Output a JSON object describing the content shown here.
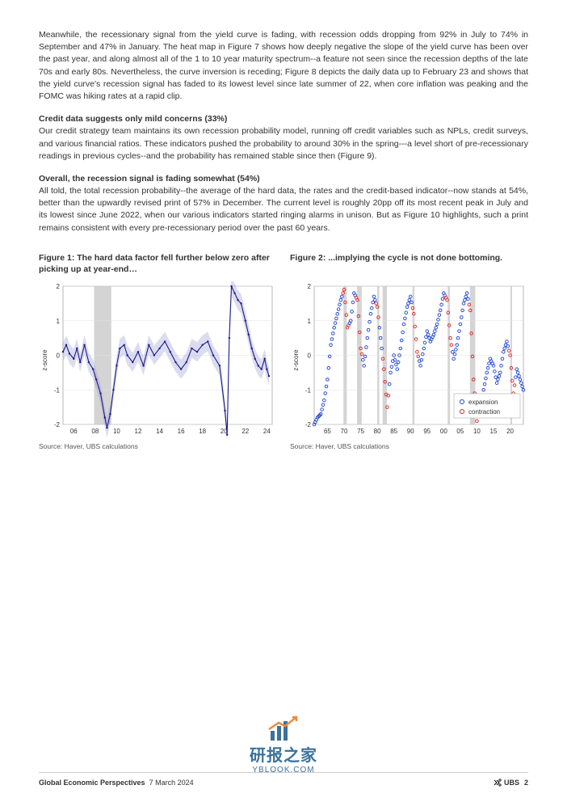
{
  "paragraphs": {
    "intro": "Meanwhile, the recessionary signal from the yield curve is fading, with recession odds dropping from 92% in July to 74% in September and 47% in January. The heat map in Figure 7 shows how deeply negative the slope of the yield curve has been over the past year, and along almost all of the 1 to 10 year maturity spectrum--a feature not seen since the recession depths of the late 70s and early 80s. Nevertheless, the curve inversion is receding; Figure 8 depicts the daily data up to February 23 and shows that the yield curve's recession signal has faded to its lowest level since late summer of 22, when core inflation was peaking and the FOMC was hiking rates at a rapid clip.",
    "credit_heading": "Credit data suggests only mild concerns (33%)",
    "credit_body": "Our credit strategy team maintains its own recession probability model, running off credit variables such as NPLs, credit surveys, and various financial ratios. These indicators pushed the probability to around 30% in the spring---a level short of pre-recessionary readings in previous cycles--and the probability has remained stable since then (Figure 9).",
    "overall_heading": "Overall, the recession signal is fading somewhat (54%)",
    "overall_body": "All told, the total recession probability--the average of the hard data, the rates and the credit-based indicator--now stands at 54%, better than the upwardly revised print of 57% in December. The current level is roughly 20pp off its most recent peak in July and its lowest since June 2022, when our various indicators started ringing alarms in unison. But as Figure 10 highlights, such a print remains consistent with every pre-recessionary period over the past 60 years."
  },
  "figure1": {
    "title": "Figure 1: The hard data factor fell further below zero after picking up at year-end…",
    "source": "Source: Haver, UBS calculations",
    "ylabel": "z-score",
    "ylim": [
      -2,
      2
    ],
    "ytick_step": 1,
    "xticks": [
      "06",
      "08",
      "10",
      "12",
      "14",
      "16",
      "18",
      "20",
      "22",
      "24"
    ],
    "recession_bands": [
      [
        2007.9,
        2009.5
      ]
    ],
    "xmin": 2005,
    "xmax": 2024.5,
    "line_color": "#1a1a8a",
    "band_color": "#9a9ad4",
    "recession_color": "#b8b8b8",
    "grid_color": "#e0e0e0",
    "background_color": "#ffffff",
    "data": [
      [
        2005.0,
        0.1
      ],
      [
        2005.3,
        0.3
      ],
      [
        2005.6,
        0.05
      ],
      [
        2006.0,
        -0.1
      ],
      [
        2006.3,
        0.2
      ],
      [
        2006.6,
        -0.2
      ],
      [
        2007.0,
        0.3
      ],
      [
        2007.4,
        -0.2
      ],
      [
        2007.8,
        -0.4
      ],
      [
        2008.1,
        -0.7
      ],
      [
        2008.5,
        -1.1
      ],
      [
        2008.9,
        -1.8
      ],
      [
        2009.1,
        -2.1
      ],
      [
        2009.4,
        -1.7
      ],
      [
        2009.7,
        -1.0
      ],
      [
        2010.0,
        -0.3
      ],
      [
        2010.3,
        0.2
      ],
      [
        2010.7,
        0.3
      ],
      [
        2011.0,
        0.0
      ],
      [
        2011.5,
        -0.2
      ],
      [
        2012.0,
        0.1
      ],
      [
        2012.5,
        -0.3
      ],
      [
        2013.0,
        0.3
      ],
      [
        2013.5,
        0.0
      ],
      [
        2014.0,
        0.2
      ],
      [
        2014.5,
        0.4
      ],
      [
        2015.0,
        0.1
      ],
      [
        2015.5,
        -0.2
      ],
      [
        2016.0,
        -0.4
      ],
      [
        2016.5,
        -0.2
      ],
      [
        2017.0,
        0.2
      ],
      [
        2017.5,
        0.1
      ],
      [
        2018.0,
        0.3
      ],
      [
        2018.5,
        0.4
      ],
      [
        2019.0,
        0.0
      ],
      [
        2019.6,
        -0.3
      ],
      [
        2020.1,
        -1.6
      ],
      [
        2020.3,
        -2.3
      ],
      [
        2020.5,
        0.5
      ],
      [
        2020.7,
        2.0
      ],
      [
        2021.0,
        1.8
      ],
      [
        2021.3,
        1.6
      ],
      [
        2021.6,
        1.5
      ],
      [
        2022.0,
        1.0
      ],
      [
        2022.3,
        0.6
      ],
      [
        2022.6,
        0.2
      ],
      [
        2022.9,
        -0.1
      ],
      [
        2023.2,
        -0.3
      ],
      [
        2023.5,
        -0.4
      ],
      [
        2023.8,
        -0.1
      ],
      [
        2024.0,
        -0.4
      ],
      [
        2024.2,
        -0.6
      ]
    ]
  },
  "figure2": {
    "title": "Figure 2: ...implying the cycle is not done bottoming.",
    "source": "Source: Haver, UBS calculations",
    "ylabel": "z-score",
    "ylim": [
      -2,
      2
    ],
    "ytick_step": 1,
    "xticks": [
      "65",
      "70",
      "75",
      "80",
      "85",
      "90",
      "95",
      "00",
      "05",
      "10",
      "15",
      "20"
    ],
    "xmin": 1961,
    "xmax": 2024,
    "recession_bands": [
      [
        1969.8,
        1970.8
      ],
      [
        1973.9,
        1975.3
      ],
      [
        1980.0,
        1980.6
      ],
      [
        1981.6,
        1982.9
      ],
      [
        1990.6,
        1991.2
      ],
      [
        2001.2,
        2001.9
      ],
      [
        2007.9,
        2009.5
      ],
      [
        2020.1,
        2020.4
      ]
    ],
    "expansion_color": "#1a3fd4",
    "contraction_color": "#e02020",
    "recession_color": "#b8b8b8",
    "grid_color": "#e0e0e0",
    "background_color": "#ffffff",
    "legend": {
      "expansion": "expansion",
      "contraction": "contraction"
    },
    "data": [
      [
        1961,
        -2.0,
        "e"
      ],
      [
        1962,
        -1.8,
        "e"
      ],
      [
        1963,
        -1.7,
        "e"
      ],
      [
        1964,
        -1.3,
        "e"
      ],
      [
        1965,
        -0.7,
        "e"
      ],
      [
        1966,
        0.3,
        "e"
      ],
      [
        1967,
        0.8,
        "e"
      ],
      [
        1968,
        1.2,
        "e"
      ],
      [
        1969,
        1.6,
        "e"
      ],
      [
        1970,
        1.9,
        "c"
      ],
      [
        1971,
        0.8,
        "c"
      ],
      [
        1972,
        1.0,
        "e"
      ],
      [
        1973,
        1.8,
        "e"
      ],
      [
        1974,
        1.6,
        "c"
      ],
      [
        1975,
        0.2,
        "c"
      ],
      [
        1976,
        -0.3,
        "e"
      ],
      [
        1977,
        0.5,
        "e"
      ],
      [
        1978,
        1.2,
        "e"
      ],
      [
        1979,
        1.7,
        "e"
      ],
      [
        1980,
        1.4,
        "c"
      ],
      [
        1981,
        0.5,
        "e"
      ],
      [
        1982,
        -0.4,
        "c"
      ],
      [
        1983,
        -1.5,
        "c"
      ],
      [
        1984,
        -0.5,
        "e"
      ],
      [
        1985,
        0.0,
        "e"
      ],
      [
        1986,
        -0.4,
        "e"
      ],
      [
        1987,
        0.2,
        "e"
      ],
      [
        1988,
        0.9,
        "e"
      ],
      [
        1989,
        1.4,
        "e"
      ],
      [
        1990,
        1.7,
        "e"
      ],
      [
        1991,
        1.2,
        "c"
      ],
      [
        1992,
        0.1,
        "c"
      ],
      [
        1993,
        -0.3,
        "e"
      ],
      [
        1994,
        0.2,
        "e"
      ],
      [
        1995,
        0.7,
        "e"
      ],
      [
        1996,
        0.4,
        "e"
      ],
      [
        1997,
        0.6,
        "e"
      ],
      [
        1998,
        0.9,
        "e"
      ],
      [
        1999,
        1.3,
        "e"
      ],
      [
        2000,
        1.8,
        "e"
      ],
      [
        2001,
        1.6,
        "c"
      ],
      [
        2002,
        0.5,
        "c"
      ],
      [
        2003,
        -0.1,
        "e"
      ],
      [
        2004,
        0.3,
        "e"
      ],
      [
        2005,
        0.9,
        "e"
      ],
      [
        2006,
        1.5,
        "e"
      ],
      [
        2007,
        1.8,
        "e"
      ],
      [
        2008,
        1.3,
        "c"
      ],
      [
        2009,
        -0.7,
        "c"
      ],
      [
        2010,
        -1.9,
        "c"
      ],
      [
        2011,
        -1.5,
        "e"
      ],
      [
        2012,
        -1.0,
        "e"
      ],
      [
        2013,
        -0.5,
        "e"
      ],
      [
        2014,
        -0.1,
        "e"
      ],
      [
        2015,
        -0.3,
        "e"
      ],
      [
        2016,
        -0.8,
        "e"
      ],
      [
        2017,
        -0.5,
        "e"
      ],
      [
        2018,
        0.1,
        "e"
      ],
      [
        2019,
        0.4,
        "e"
      ],
      [
        2020,
        0.0,
        "c"
      ],
      [
        2021,
        -1.1,
        "c"
      ],
      [
        2022,
        -0.4,
        "e"
      ],
      [
        2023,
        -0.7,
        "e"
      ],
      [
        2024,
        -1.0,
        "e"
      ]
    ]
  },
  "footer": {
    "title": "Global Economic Perspectives",
    "date": "7 March 2024",
    "brand": "UBS",
    "page": "2"
  },
  "watermark": {
    "text": "研报之家",
    "url": "YBLOOK.COM"
  }
}
